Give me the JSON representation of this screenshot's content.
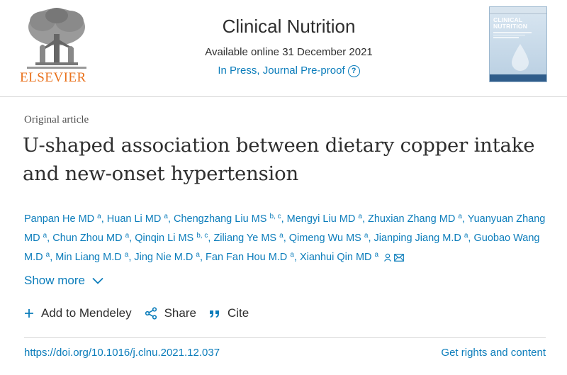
{
  "publisher": {
    "name": "ELSEVIER",
    "logo_icon": "elsevier-tree-icon"
  },
  "journal": {
    "title": "Clinical Nutrition",
    "available_online": "Available online 31 December 2021",
    "status": "In Press, Journal Pre-proof",
    "status_icon": "help-circle-icon",
    "cover_title_line1": "CLINICAL",
    "cover_title_line2": "NUTRITION"
  },
  "article": {
    "type": "Original article",
    "title": "U-shaped association between dietary copper intake and new-onset hypertension"
  },
  "authors": [
    {
      "name": "Panpan He MD",
      "aff": "a"
    },
    {
      "name": "Huan Li MD",
      "aff": "a"
    },
    {
      "name": "Chengzhang Liu MS",
      "aff": "b, c"
    },
    {
      "name": "Mengyi Liu MD",
      "aff": "a"
    },
    {
      "name": "Zhuxian Zhang MD",
      "aff": "a"
    },
    {
      "name": "Yuanyuan Zhang MD",
      "aff": "a"
    },
    {
      "name": "Chun Zhou MD",
      "aff": "a"
    },
    {
      "name": "Qinqin Li MS",
      "aff": "b, c"
    },
    {
      "name": "Ziliang Ye MS",
      "aff": "a"
    },
    {
      "name": "Qimeng Wu MS",
      "aff": "a"
    },
    {
      "name": "Jianping Jiang M.D",
      "aff": "a"
    },
    {
      "name": "Guobao Wang M.D",
      "aff": "a"
    },
    {
      "name": "Min Liang M.D",
      "aff": "a"
    },
    {
      "name": "Jing Nie M.D",
      "aff": "a"
    },
    {
      "name": "Fan Fan Hou M.D",
      "aff": "a"
    },
    {
      "name": "Xianhui Qin MD",
      "aff": "a"
    }
  ],
  "show_more": {
    "label": "Show more"
  },
  "actions": {
    "mendeley": "Add to Mendeley",
    "share": "Share",
    "cite": "Cite"
  },
  "footer": {
    "doi": "https://doi.org/10.1016/j.clnu.2021.12.037",
    "rights": "Get rights and content"
  },
  "colors": {
    "link": "#0c7dbb",
    "publisher": "#e9711c",
    "text": "#2e2e2e"
  }
}
